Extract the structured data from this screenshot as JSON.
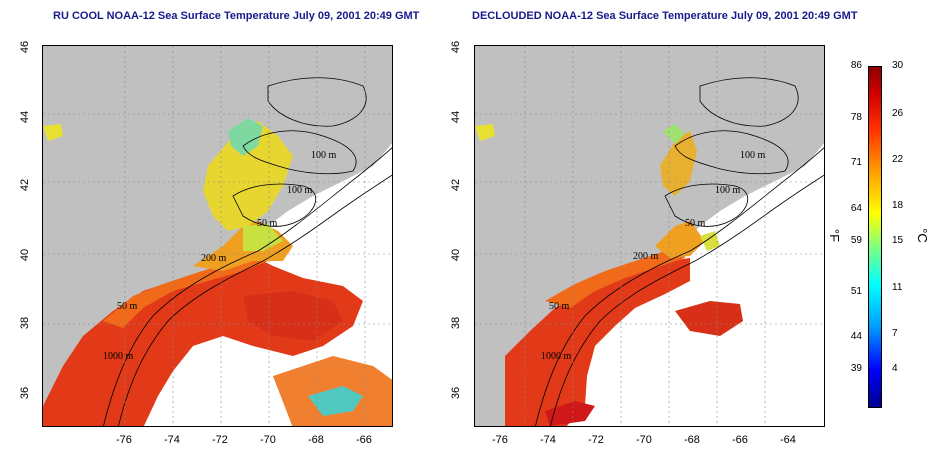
{
  "left_panel": {
    "title": "RU COOL NOAA-12 Sea Surface Temperature July 09, 2001 20:49 GMT"
  },
  "right_panel": {
    "title": "DECLOUDED NOAA-12 Sea Surface Temperature July 09, 2001 20:49 GMT"
  },
  "y_ticks": [
    "46",
    "44",
    "42",
    "40",
    "38",
    "36"
  ],
  "x_ticks": [
    "-76",
    "-74",
    "-72",
    "-70",
    "-68",
    "-66",
    "-64"
  ],
  "contours_left": [
    "100 m",
    "100 m",
    "50 m",
    "200 m",
    "50 m",
    "1000 m"
  ],
  "contours_right": [
    "100 m",
    "100 m",
    "50 m",
    "200 m",
    "50 m",
    "1000 m"
  ],
  "colorbar": {
    "fahrenheit_ticks": [
      "86",
      "78",
      "71",
      "64",
      "59",
      "51",
      "44",
      "39"
    ],
    "celsius_ticks": [
      "30",
      "26",
      "22",
      "18",
      "15",
      "11",
      "7",
      "4"
    ],
    "unit_f": "°F",
    "unit_c": "°C",
    "colors": [
      "#00008f",
      "#0000ff",
      "#00a0ff",
      "#00ffff",
      "#7fff7f",
      "#ffff00",
      "#ff9f00",
      "#ff3000",
      "#d00000",
      "#8b0000"
    ]
  },
  "colors": {
    "land": "#c0c0c0",
    "no_data": "#ffffff",
    "title": "#1a1a8c"
  }
}
